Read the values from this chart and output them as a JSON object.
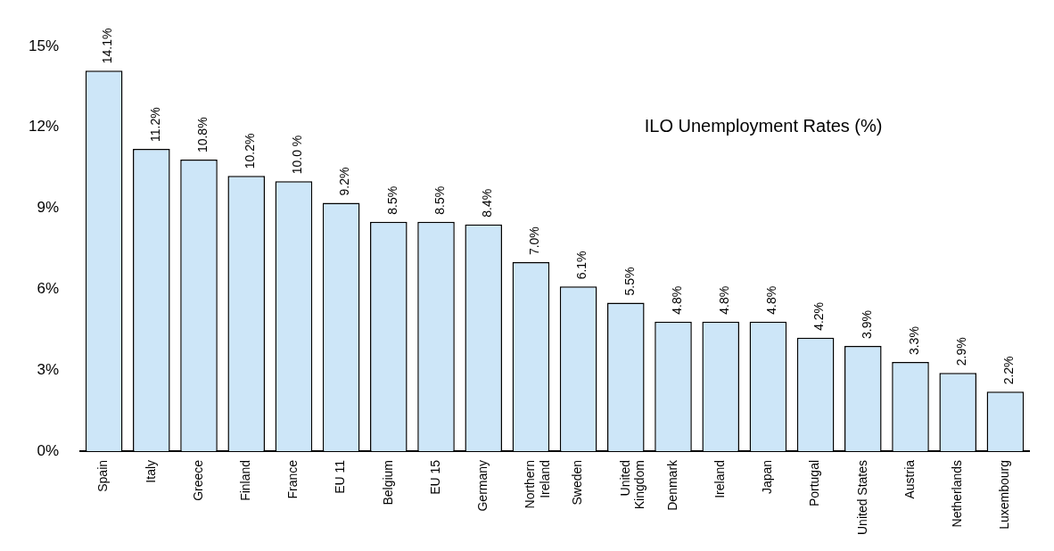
{
  "chart_data": {
    "type": "bar",
    "title": "ILO Unemployment Rates (%)",
    "categories": [
      "Spain",
      "Italy",
      "Greece",
      "Finland",
      "France",
      "EU 11",
      "Belgium",
      "EU 15",
      "Germany",
      "Northern\nIreland",
      "Sweden",
      "United\nKingdom",
      "Denmark",
      "Ireland",
      "Japan",
      "Portugal",
      "United States",
      "Austria",
      "Netherlands",
      "Luxembourg"
    ],
    "values": [
      14.1,
      11.2,
      10.8,
      10.2,
      10.0,
      9.2,
      8.5,
      8.5,
      8.4,
      7.0,
      6.1,
      5.5,
      4.8,
      4.8,
      4.8,
      4.2,
      3.9,
      3.3,
      2.9,
      2.2
    ],
    "value_labels": [
      "14.1%",
      "11.2%",
      "10.8%",
      "10.2%",
      "10.0 %",
      "9.2%",
      "8.5%",
      "8.5%",
      "8.4%",
      "7.0%",
      "6.1%",
      "5.5%",
      "4.8%",
      "4.8%",
      "4.8%",
      "4.2%",
      "3.9%",
      "3.3%",
      "2.9%",
      "2.2%"
    ],
    "color": "#cde6f8",
    "ylim": [
      0,
      15
    ],
    "yticks": [
      {
        "value": 0,
        "label": "0%"
      },
      {
        "value": 3,
        "label": "3%"
      },
      {
        "value": 6,
        "label": "6%"
      },
      {
        "value": 9,
        "label": "9%"
      },
      {
        "value": 12,
        "label": "12%"
      },
      {
        "value": 15,
        "label": "15%"
      }
    ],
    "grid": false
  }
}
